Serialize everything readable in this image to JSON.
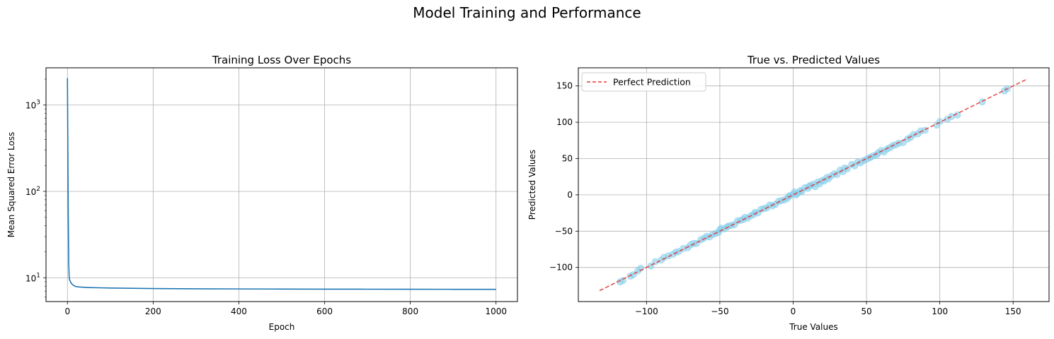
{
  "figure": {
    "suptitle": "Model Training and Performance"
  },
  "chart_data": [
    {
      "type": "line",
      "title": "Training Loss Over Epochs",
      "xlabel": "Epoch",
      "ylabel": "Mean Squared Error Loss",
      "yscale": "log",
      "xlim": [
        -50,
        1050
      ],
      "ylim": [
        5.3,
        2700
      ],
      "x_ticks": [
        0,
        200,
        400,
        600,
        800,
        1000
      ],
      "x_tick_labels": [
        "0",
        "200",
        "400",
        "600",
        "800",
        "1000"
      ],
      "y_ticks": [
        10,
        100,
        1000
      ],
      "y_tick_labels": [
        "10¹",
        "10²",
        "10³"
      ],
      "y_tick_bases": [
        "10",
        "10",
        "10"
      ],
      "y_tick_exponents": [
        "1",
        "2",
        "3"
      ],
      "grid": true,
      "color": "#1f77b4",
      "series": [
        {
          "x": [
            0,
            1,
            2,
            3,
            4,
            5,
            7,
            10,
            15,
            20,
            30,
            50,
            75,
            100,
            150,
            200,
            300,
            400,
            500,
            600,
            700,
            800,
            900,
            1000
          ],
          "y": [
            2050,
            300,
            50,
            15,
            10.2,
            9.5,
            9.0,
            8.5,
            8.1,
            7.9,
            7.8,
            7.7,
            7.65,
            7.6,
            7.55,
            7.5,
            7.45,
            7.42,
            7.4,
            7.38,
            7.37,
            7.36,
            7.35,
            7.35
          ]
        }
      ]
    },
    {
      "type": "scatter",
      "title": "True vs. Predicted Values",
      "xlabel": "True Values",
      "ylabel": "Predicted Values",
      "xlim": [
        -146.5,
        174.5
      ],
      "ylim": [
        -147,
        175
      ],
      "x_ticks": [
        -100,
        -50,
        0,
        50,
        100,
        150
      ],
      "x_tick_labels": [
        "−100",
        "−50",
        "0",
        "50",
        "100",
        "150"
      ],
      "y_ticks": [
        -100,
        -50,
        0,
        50,
        100,
        150
      ],
      "y_tick_labels": [
        "−100",
        "−50",
        "0",
        "50",
        "100",
        "150"
      ],
      "grid": true,
      "legend": "upper-left",
      "point_color": "#87ceeb",
      "point_opacity": 0.6,
      "reference_line": {
        "name": "Perfect Prediction",
        "x": [
          -132,
          160
        ],
        "y": [
          -132,
          160
        ],
        "color": "#e03c3c",
        "style": "dashed"
      },
      "series": [
        {
          "x": [
            -118,
            -116,
            -111,
            -109,
            -106,
            -104,
            -97,
            -94,
            -90,
            -88,
            -85,
            -82,
            -80,
            -78,
            -75,
            -72,
            -70,
            -68,
            -66,
            -63,
            -61,
            -59,
            -57,
            -55,
            -53,
            -51,
            -50,
            -49,
            -47,
            -45,
            -44,
            -42,
            -40,
            -38,
            -36,
            -34,
            -33,
            -31,
            -29,
            -27,
            -26,
            -24,
            -22,
            -20,
            -18,
            -16,
            -14,
            -12,
            -10,
            -8,
            -6,
            -4,
            -3,
            -2,
            0,
            1,
            2,
            3,
            5,
            6,
            8,
            10,
            11,
            12,
            14,
            15,
            17,
            18,
            20,
            21,
            23,
            24,
            26,
            28,
            30,
            32,
            34,
            35,
            37,
            40,
            42,
            44,
            46,
            48,
            50,
            52,
            53,
            55,
            57,
            58,
            60,
            62,
            64,
            66,
            68,
            70,
            72,
            75,
            78,
            80,
            82,
            85,
            87,
            90,
            98,
            100,
            105,
            108,
            112,
            129,
            144,
            146
          ],
          "y": [
            -120,
            -118,
            -112,
            -110,
            -105,
            -101,
            -98,
            -92,
            -90,
            -86,
            -84,
            -82,
            -79,
            -78,
            -74,
            -73,
            -69,
            -67,
            -67,
            -62,
            -60,
            -57,
            -58,
            -55,
            -53,
            -52,
            -48,
            -46,
            -47,
            -44,
            -43,
            -42,
            -41,
            -36,
            -35,
            -34,
            -31,
            -32,
            -29,
            -27,
            -24,
            -25,
            -20,
            -19,
            -18,
            -14,
            -15,
            -13,
            -9,
            -8,
            -7,
            -5,
            -2,
            -1,
            1,
            4,
            0,
            2,
            6,
            5,
            10,
            9,
            12,
            13,
            15,
            11,
            18,
            15,
            20,
            19,
            24,
            22,
            26,
            29,
            28,
            34,
            32,
            37,
            36,
            42,
            40,
            45,
            44,
            47,
            49,
            51,
            52,
            54,
            55,
            58,
            61,
            59,
            63,
            65,
            68,
            69,
            71,
            72,
            77,
            79,
            83,
            84,
            88,
            89,
            96,
            101,
            104,
            108,
            110,
            128,
            143,
            146
          ]
        }
      ]
    }
  ]
}
